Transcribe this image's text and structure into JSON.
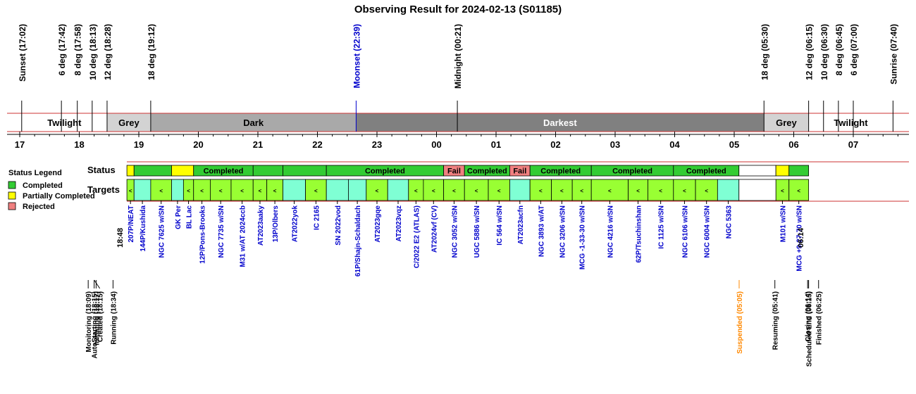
{
  "title": "Observing Result for 2024-02-13 (S01185)",
  "colors": {
    "completed": "#33cc33",
    "partial": "#ffff00",
    "rejected": "#f08080",
    "target_completed": "#99ff33",
    "target_partial": "#7fffd4",
    "twilight": "#ffffff",
    "grey": "#d3d3d3",
    "dark": "#a9a9a9",
    "darkest": "#808080",
    "band_line": "#cc3333",
    "moon": "#0000cc",
    "target_text": "#0000cc",
    "suspended": "#ff8800"
  },
  "sky_events": [
    {
      "label": "Sunset (17:02)",
      "hour": 17.033,
      "color": "#000000"
    },
    {
      "label": "6 deg (17:42)",
      "hour": 17.7,
      "color": "#000000"
    },
    {
      "label": "8 deg (17:58)",
      "hour": 17.967,
      "color": "#000000"
    },
    {
      "label": "10 deg (18:13)",
      "hour": 18.217,
      "color": "#000000"
    },
    {
      "label": "12 deg (18:28)",
      "hour": 18.467,
      "color": "#000000"
    },
    {
      "label": "18 deg (19:12)",
      "hour": 19.2,
      "color": "#000000"
    },
    {
      "label": "Moonset (22:39)",
      "hour": 22.65,
      "color": "#0000cc"
    },
    {
      "label": "Midnight (00:21)",
      "hour": 24.35,
      "color": "#000000"
    },
    {
      "label": "18 deg (05:30)",
      "hour": 29.5,
      "color": "#000000"
    },
    {
      "label": "12 deg (06:15)",
      "hour": 30.25,
      "color": "#000000"
    },
    {
      "label": "10 deg (06:30)",
      "hour": 30.5,
      "color": "#000000"
    },
    {
      "label": "8 deg (06:45)",
      "hour": 30.75,
      "color": "#000000"
    },
    {
      "label": "6 deg (07:00)",
      "hour": 31.0,
      "color": "#000000"
    },
    {
      "label": "Sunrise (07:40)",
      "hour": 31.667,
      "color": "#000000"
    }
  ],
  "bands": [
    {
      "label": "Twilight",
      "start": 17.033,
      "end": 18.467,
      "color": "#ffffff",
      "text_color": "#000000"
    },
    {
      "label": "Grey",
      "start": 18.467,
      "end": 19.2,
      "color": "#d3d3d3",
      "text_color": "#000000"
    },
    {
      "label": "Dark",
      "start": 19.2,
      "end": 22.65,
      "color": "#a9a9a9",
      "text_color": "#000000"
    },
    {
      "label": "Darkest",
      "start": 22.65,
      "end": 29.5,
      "color": "#808080",
      "text_color": "#ffffff"
    },
    {
      "label": "Grey",
      "start": 29.5,
      "end": 30.25,
      "color": "#d3d3d3",
      "text_color": "#000000"
    },
    {
      "label": "Twilight",
      "start": 30.25,
      "end": 31.667,
      "color": "#ffffff",
      "text_color": "#000000"
    }
  ],
  "hour_labels": [
    "17",
    "18",
    "19",
    "20",
    "21",
    "22",
    "23",
    "00",
    "01",
    "02",
    "03",
    "04",
    "05",
    "06",
    "07"
  ],
  "legend": {
    "title": "Status Legend",
    "items": [
      {
        "label": "Completed",
        "color": "#33cc33"
      },
      {
        "label": "Partially Completed",
        "color": "#ffff00"
      },
      {
        "label": "Rejected",
        "color": "#f08080"
      }
    ]
  },
  "row_labels": {
    "status": "Status",
    "targets": "Targets"
  },
  "status_blocks": [
    {
      "start": 18.8,
      "end": 18.92,
      "status": "partial",
      "label": ""
    },
    {
      "start": 18.92,
      "end": 19.55,
      "status": "completed",
      "label": ""
    },
    {
      "start": 19.55,
      "end": 19.92,
      "status": "partial",
      "label": ""
    },
    {
      "start": 19.92,
      "end": 20.92,
      "status": "completed",
      "label": "Completed"
    },
    {
      "start": 20.92,
      "end": 21.42,
      "status": "completed",
      "label": ""
    },
    {
      "start": 21.42,
      "end": 22.15,
      "status": "completed",
      "label": ""
    },
    {
      "start": 22.15,
      "end": 24.12,
      "status": "completed",
      "label": "Completed"
    },
    {
      "start": 24.12,
      "end": 24.47,
      "status": "rejected",
      "label": "Fail"
    },
    {
      "start": 24.47,
      "end": 25.23,
      "status": "completed",
      "label": "Completed"
    },
    {
      "start": 25.23,
      "end": 25.57,
      "status": "rejected",
      "label": "Fail"
    },
    {
      "start": 25.57,
      "end": 26.6,
      "status": "completed",
      "label": "Completed"
    },
    {
      "start": 26.6,
      "end": 27.98,
      "status": "completed",
      "label": "Completed"
    },
    {
      "start": 27.98,
      "end": 29.08,
      "status": "completed",
      "label": "Completed"
    },
    {
      "start": 29.08,
      "end": 29.7,
      "status": "empty",
      "label": ""
    },
    {
      "start": 29.7,
      "end": 29.92,
      "status": "partial",
      "label": ""
    },
    {
      "start": 29.92,
      "end": 30.25,
      "status": "completed",
      "label": ""
    }
  ],
  "targets": [
    {
      "name": "207P/NEAT",
      "start": 18.8,
      "end": 18.92,
      "kind": "completed",
      "marker": "<"
    },
    {
      "name": "144P/Kushida",
      "start": 18.92,
      "end": 19.2,
      "kind": "partial",
      "marker": ""
    },
    {
      "name": "NGC 7625 w/SN",
      "start": 19.2,
      "end": 19.55,
      "kind": "completed",
      "marker": "<"
    },
    {
      "name": "GK Per",
      "start": 19.55,
      "end": 19.75,
      "kind": "partial",
      "marker": ""
    },
    {
      "name": "BL Lac",
      "start": 19.75,
      "end": 19.92,
      "kind": "completed",
      "marker": "<"
    },
    {
      "name": "12P/Pons-Brooks",
      "start": 19.92,
      "end": 20.2,
      "kind": "completed",
      "marker": "<"
    },
    {
      "name": "NGC 7735 w/SN",
      "start": 20.2,
      "end": 20.55,
      "kind": "completed",
      "marker": "<"
    },
    {
      "name": "M31 w/AT 2024ccb",
      "start": 20.55,
      "end": 20.92,
      "kind": "completed",
      "marker": "<"
    },
    {
      "name": "AT2023aaky",
      "start": 20.92,
      "end": 21.15,
      "kind": "completed",
      "marker": "<"
    },
    {
      "name": "13P/Olbers",
      "start": 21.15,
      "end": 21.42,
      "kind": "completed",
      "marker": "<"
    },
    {
      "name": "AT2022yok",
      "start": 21.42,
      "end": 21.8,
      "kind": "partial",
      "marker": ""
    },
    {
      "name": "IC 2165",
      "start": 21.8,
      "end": 22.15,
      "kind": "completed",
      "marker": "<"
    },
    {
      "name": "SN 2022vod",
      "start": 22.15,
      "end": 22.52,
      "kind": "partial",
      "marker": ""
    },
    {
      "name": "61P/Shajn-Schaldach",
      "start": 22.52,
      "end": 22.82,
      "kind": "partial",
      "marker": ""
    },
    {
      "name": "AT2023gqe",
      "start": 22.82,
      "end": 23.18,
      "kind": "completed",
      "marker": "<"
    },
    {
      "name": "AT2023vqz",
      "start": 23.18,
      "end": 23.53,
      "kind": "partial",
      "marker": ""
    },
    {
      "name": "C/2022 E2 (ATLAS)",
      "start": 23.53,
      "end": 23.78,
      "kind": "completed",
      "marker": "<"
    },
    {
      "name": "AT2024vf (CV)",
      "start": 23.78,
      "end": 24.12,
      "kind": "completed",
      "marker": "<"
    },
    {
      "name": "NGC 3052 w/SN",
      "start": 24.12,
      "end": 24.47,
      "kind": "completed",
      "marker": "<"
    },
    {
      "name": "UGC 5886 w/SN",
      "start": 24.47,
      "end": 24.87,
      "kind": "completed",
      "marker": "<"
    },
    {
      "name": "IC 564 w/SN",
      "start": 24.87,
      "end": 25.23,
      "kind": "completed",
      "marker": "<"
    },
    {
      "name": "AT2023acfn",
      "start": 25.23,
      "end": 25.57,
      "kind": "partial",
      "marker": ""
    },
    {
      "name": "NGC 3893 w/AT",
      "start": 25.57,
      "end": 25.93,
      "kind": "completed",
      "marker": "<"
    },
    {
      "name": "NGC 3206 w/SN",
      "start": 25.93,
      "end": 26.28,
      "kind": "completed",
      "marker": "<"
    },
    {
      "name": "MCG -1-33-30 w/SN",
      "start": 26.28,
      "end": 26.6,
      "kind": "completed",
      "marker": "<"
    },
    {
      "name": "NGC 4216 w/SN",
      "start": 26.6,
      "end": 27.22,
      "kind": "completed",
      "marker": "<"
    },
    {
      "name": "62P/Tsuchinshan",
      "start": 27.22,
      "end": 27.55,
      "kind": "completed",
      "marker": "<"
    },
    {
      "name": "IC 1125 w/SN",
      "start": 27.55,
      "end": 27.98,
      "kind": "completed",
      "marker": "<"
    },
    {
      "name": "NGC 6106 w/SN",
      "start": 27.98,
      "end": 28.35,
      "kind": "completed",
      "marker": "<"
    },
    {
      "name": "NGC 6004 w/SN",
      "start": 28.35,
      "end": 28.72,
      "kind": "completed",
      "marker": "<"
    },
    {
      "name": "NGC 5363",
      "start": 28.72,
      "end": 29.08,
      "kind": "partial",
      "marker": ""
    },
    {
      "name": "M101 w/SN",
      "start": 29.7,
      "end": 29.92,
      "kind": "completed",
      "marker": "<"
    },
    {
      "name": "MCG +9-27-70 w/SN",
      "start": 29.92,
      "end": 30.25,
      "kind": "completed",
      "marker": "<"
    }
  ],
  "time_marks": [
    {
      "label": "18:48",
      "hour": 18.8
    },
    {
      "label": "06:14",
      "hour": 30.233
    }
  ],
  "state_events": [
    {
      "label": "Monitoring (18:09)",
      "hour": 18.15,
      "color": "#000000"
    },
    {
      "label": "AutoStarting (18:15)",
      "hour": 18.25,
      "color": "#000000"
    },
    {
      "label": "Created (18:15)",
      "hour": 18.25,
      "color": "#000000"
    },
    {
      "label": "Initiating (18:17)",
      "hour": 18.283,
      "color": "#000000"
    },
    {
      "label": "Running (18:34)",
      "hour": 18.567,
      "color": "#000000"
    },
    {
      "label": "Suspended (05:05)",
      "hour": 29.083,
      "color": "#ff8800"
    },
    {
      "label": "Resuming (05:41)",
      "hour": 29.683,
      "color": "#000000"
    },
    {
      "label": "Closing (06:14)",
      "hour": 30.233,
      "color": "#000000"
    },
    {
      "label": "Scheduled End (06:15)",
      "hour": 30.25,
      "color": "#000000"
    },
    {
      "label": "Finished (06:25)",
      "hour": 30.417,
      "color": "#000000"
    }
  ]
}
